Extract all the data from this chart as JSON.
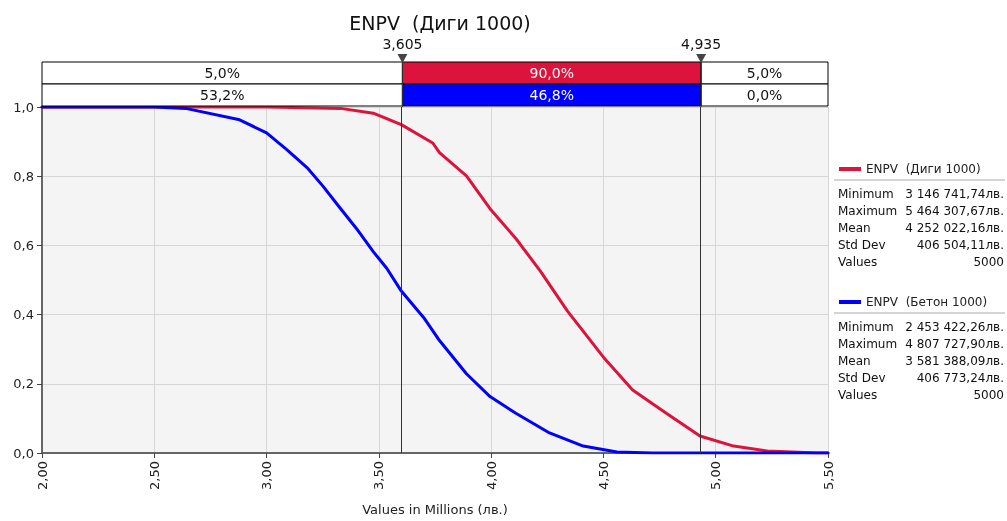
{
  "chart_data": {
    "type": "line",
    "title": "ENPV  (Диги 1000)",
    "xlabel": "Values in Millions (лв.)",
    "xlim": [
      2,
      5.5
    ],
    "xticks": [
      {
        "value": 2,
        "label": "2,00"
      },
      {
        "value": 2.5,
        "label": "2,50"
      },
      {
        "value": 3,
        "label": "3,00"
      },
      {
        "value": 3.5,
        "label": "3,50"
      },
      {
        "value": 4,
        "label": "4,00"
      },
      {
        "value": 4.5,
        "label": "4,50"
      },
      {
        "value": 5,
        "label": "5,00"
      },
      {
        "value": 5.5,
        "label": "5,50"
      }
    ],
    "ylim": [
      0,
      1
    ],
    "yticks": [
      {
        "value": 0,
        "label": "0,0"
      },
      {
        "value": 0.2,
        "label": "0,2"
      },
      {
        "value": 0.4,
        "label": "0,4"
      },
      {
        "value": 0.6,
        "label": "0,6"
      },
      {
        "value": 0.8,
        "label": "0,8"
      },
      {
        "value": 1,
        "label": "1,0"
      }
    ],
    "grid": true,
    "legend": "right",
    "marker": "none",
    "line_style": "solid",
    "series": [
      {
        "name": "ENPV  (Диги 1000)",
        "color": "#dc143c",
        "x": [
          2,
          3.0,
          3.33,
          3.475,
          3.6,
          3.74,
          3.77,
          3.89,
          3.995,
          4.11,
          4.22,
          4.34,
          4.5,
          4.63,
          4.78,
          4.93,
          5.08,
          5.23,
          5.45,
          5.5
        ],
        "values": [
          1,
          1,
          0.996,
          0.982,
          0.949,
          0.896,
          0.868,
          0.801,
          0.706,
          0.62,
          0.525,
          0.41,
          0.277,
          0.182,
          0.115,
          0.049,
          0.02,
          0.006,
          0,
          0
        ]
      },
      {
        "name": "ENPV  (Бетон 1000)",
        "color": "#0000ff",
        "x": [
          2,
          2.5,
          2.64,
          2.88,
          3.0,
          3.09,
          3.18,
          3.25,
          3.33,
          3.4,
          3.475,
          3.535,
          3.6,
          3.7,
          3.77,
          3.89,
          3.995,
          4.11,
          4.26,
          4.41,
          4.56,
          4.72,
          5.5
        ],
        "values": [
          1,
          1,
          0.996,
          0.963,
          0.925,
          0.877,
          0.825,
          0.772,
          0.706,
          0.649,
          0.582,
          0.534,
          0.468,
          0.391,
          0.325,
          0.229,
          0.163,
          0.115,
          0.058,
          0.02,
          0.003,
          0,
          0
        ]
      }
    ],
    "ref_lines": [
      {
        "axis": "x",
        "value": 3.605,
        "label": "3,605",
        "color": "#333333"
      },
      {
        "axis": "x",
        "value": 4.935,
        "label": "4,935",
        "color": "#333333"
      }
    ],
    "annotations": [
      "5,0%",
      "90,0%",
      "5,0%",
      "53,2%",
      "46,8%",
      "0,0%",
      "Minimum",
      "3 146 741,74лв.",
      "Maximum",
      "5 464 307,67лв.",
      "Mean",
      "4 252 022,16лв.",
      "Std Dev",
      "406 504,11лв.",
      "Values",
      "5000",
      "Minimum",
      "2 453 422,26лв.",
      "Maximum",
      "4 807 727,90лв.",
      "Mean",
      "3 581 388,09лв.",
      "Std Dev",
      "406 773,24лв.",
      "Values",
      "5000"
    ]
  }
}
